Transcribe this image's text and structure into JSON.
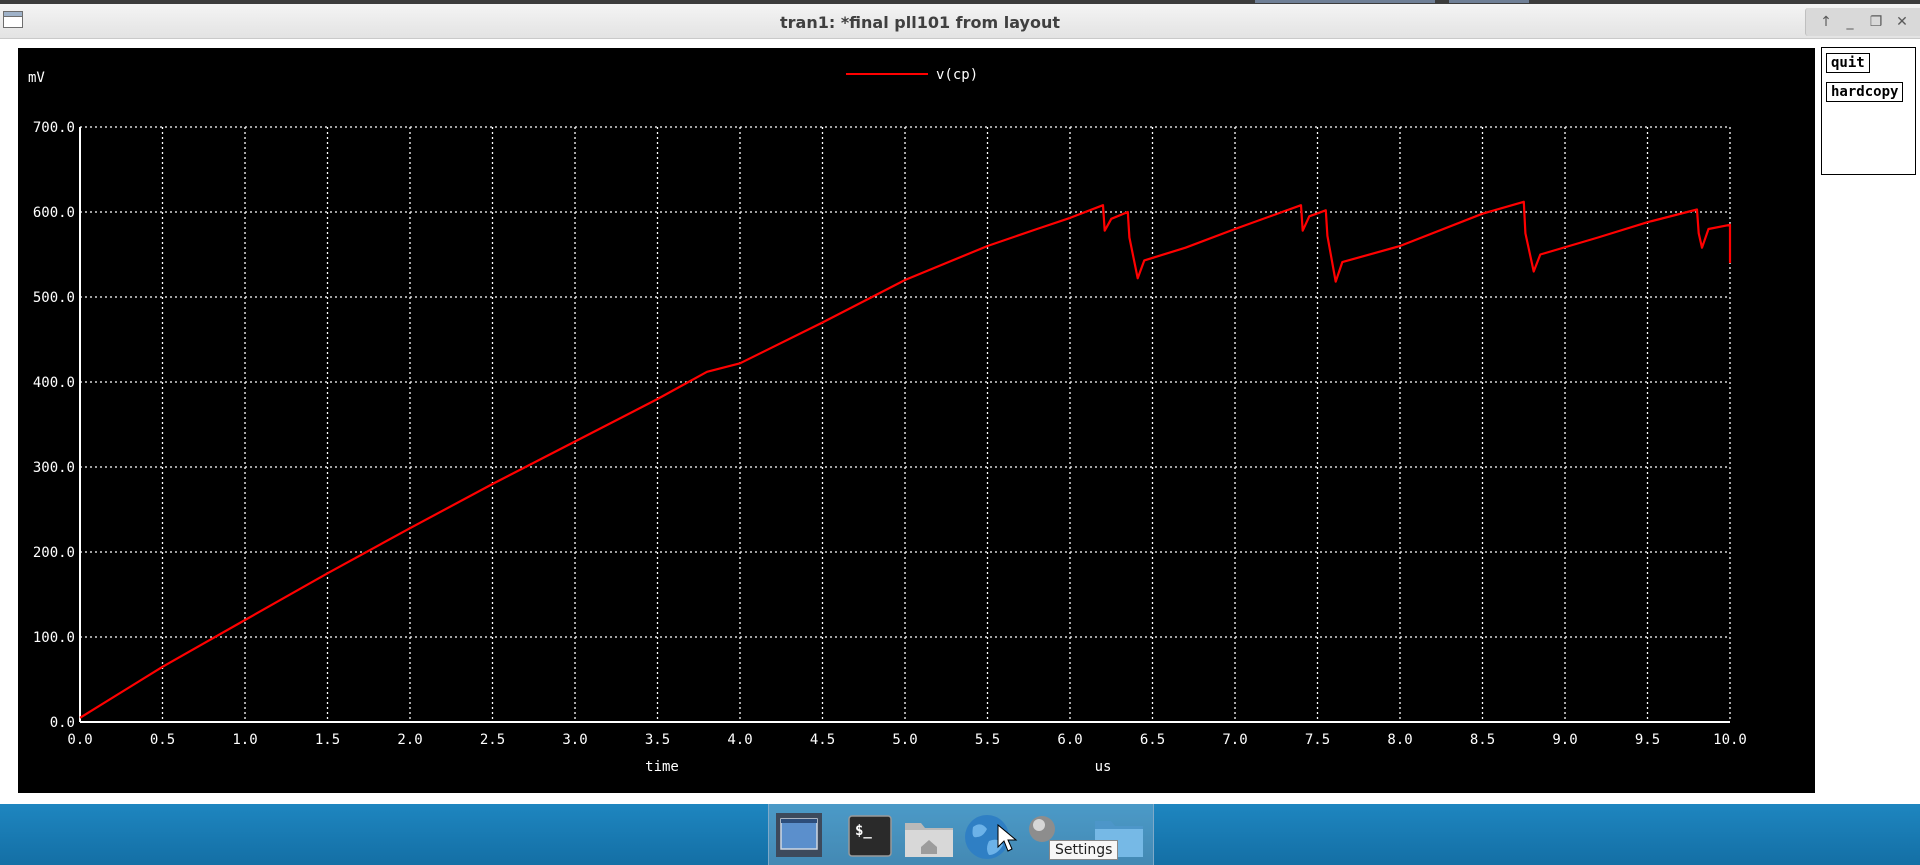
{
  "window": {
    "title": "tran1: *final pll101 from layout",
    "controls": [
      "arrow-up-icon",
      "minimize-icon",
      "maximize-icon",
      "close-icon"
    ]
  },
  "side_panel": {
    "quit_label": "quit",
    "hardcopy_label": "hardcopy"
  },
  "colors": {
    "plot_background": "#000000",
    "grid": "#ffffff",
    "trace": "#ff0000",
    "taskbar": "#1a7fba"
  },
  "taskbar": {
    "items": [
      "desktop-icon",
      "terminal-icon",
      "home-folder-icon",
      "web-browser-icon",
      "settings-icon",
      "folder-icon"
    ],
    "tooltip": "Settings"
  },
  "chart_data": {
    "type": "line",
    "title": "",
    "xlabel": "time",
    "x_unit": "us",
    "ylabel": "mV",
    "xlim": [
      0,
      10
    ],
    "ylim": [
      0,
      700
    ],
    "grid": true,
    "legend_position": "top-center",
    "x_ticks": [
      "0.0",
      "0.5",
      "1.0",
      "1.5",
      "2.0",
      "2.5",
      "3.0",
      "3.5",
      "4.0",
      "4.5",
      "5.0",
      "5.5",
      "6.0",
      "6.5",
      "7.0",
      "7.5",
      "8.0",
      "8.5",
      "9.0",
      "9.5",
      "10.0"
    ],
    "y_ticks": [
      "0.0",
      "100.0",
      "200.0",
      "300.0",
      "400.0",
      "500.0",
      "600.0",
      "700.0"
    ],
    "series": [
      {
        "name": "v(cp)",
        "color": "#ff0000",
        "x": [
          0,
          0.5,
          1.0,
          1.5,
          2.0,
          2.5,
          3.0,
          3.5,
          3.8,
          4.0,
          4.5,
          5.0,
          5.5,
          5.8,
          6.0,
          6.2,
          6.21,
          6.25,
          6.35,
          6.36,
          6.41,
          6.45,
          6.7,
          7.0,
          7.4,
          7.41,
          7.45,
          7.55,
          7.56,
          7.61,
          7.65,
          8.0,
          8.5,
          8.75,
          8.76,
          8.81,
          8.85,
          9.2,
          9.5,
          9.8,
          9.81,
          9.83,
          9.87,
          10.0,
          10.0
        ],
        "y": [
          5,
          65,
          120,
          175,
          228,
          280,
          330,
          380,
          412,
          422,
          470,
          520,
          560,
          580,
          593,
          608,
          578,
          592,
          600,
          570,
          522,
          543,
          558,
          580,
          608,
          578,
          595,
          602,
          572,
          518,
          541,
          560,
          598,
          612,
          575,
          530,
          550,
          570,
          588,
          603,
          575,
          558,
          580,
          585,
          540
        ]
      }
    ]
  }
}
